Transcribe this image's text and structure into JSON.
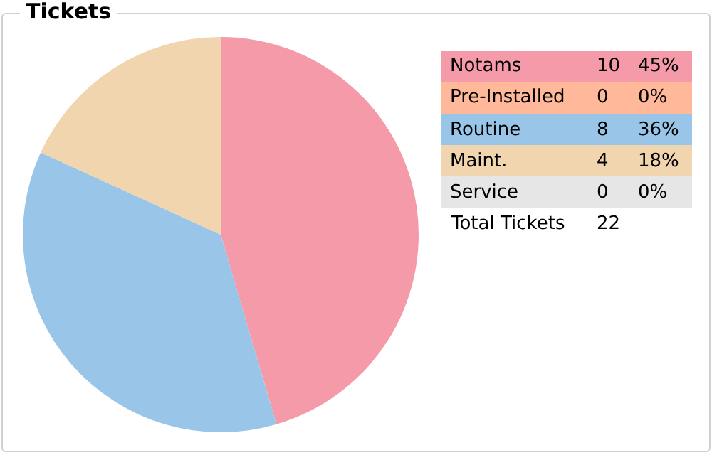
{
  "chart_data": {
    "type": "pie",
    "title": "Tickets",
    "categories": [
      "Notams",
      "Pre-Installed",
      "Routine",
      "Maint.",
      "Service"
    ],
    "values": [
      10,
      0,
      8,
      4,
      0
    ],
    "colors": [
      "#f49aa8",
      "#ffb899",
      "#99c6e8",
      "#f0d5ae",
      "#e6e6e6"
    ],
    "value_labels": [
      "10",
      "0",
      "8",
      "4",
      "0"
    ],
    "legend": "right",
    "annotations": [
      "45%",
      "0%",
      "36%",
      "18%",
      "0%",
      "Total Tickets",
      "22"
    ]
  }
}
